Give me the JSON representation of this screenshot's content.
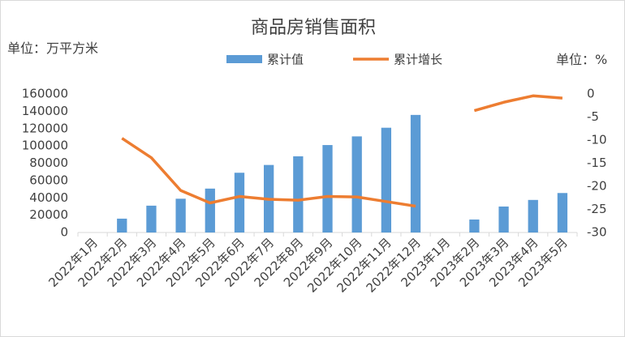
{
  "chart_data": {
    "type": "bar_line",
    "title": "商品房销售面积",
    "y_unit": "单位：万平方米",
    "y2_unit": "单位：%",
    "categories": [
      "2022年1月",
      "2022年2月",
      "2022年3月",
      "2022年4月",
      "2022年5月",
      "2022年6月",
      "2022年7月",
      "2022年8月",
      "2022年9月",
      "2022年10月",
      "2022年11月",
      "2022年12月",
      "2023年1月",
      "2023年2月",
      "2023年3月",
      "2023年4月",
      "2023年5月"
    ],
    "series": [
      {
        "name": "累计值",
        "type": "bar",
        "color": "#5b9bd5",
        "values": [
          null,
          16000,
          31000,
          39000,
          50700,
          69000,
          78000,
          88000,
          101000,
          111000,
          121000,
          135800,
          null,
          15000,
          30000,
          37600,
          45600
        ]
      },
      {
        "name": "累计增长",
        "type": "line",
        "axis": "y2",
        "color": "#ed7d31",
        "values": [
          null,
          -9.6,
          -13.8,
          -20.9,
          -23.6,
          -22.2,
          -22.8,
          -23,
          -22.2,
          -22.3,
          -23.3,
          -24.3,
          null,
          -3.6,
          -1.8,
          -0.4,
          -0.9
        ]
      }
    ],
    "ylim": [
      0,
      160000
    ],
    "yticks": [
      0,
      20000,
      40000,
      60000,
      80000,
      100000,
      120000,
      140000,
      160000
    ],
    "y2lim": [
      -30,
      0
    ],
    "y2ticks": [
      -30,
      -25,
      -20,
      -15,
      -10,
      -5,
      0
    ],
    "legend": "top"
  }
}
